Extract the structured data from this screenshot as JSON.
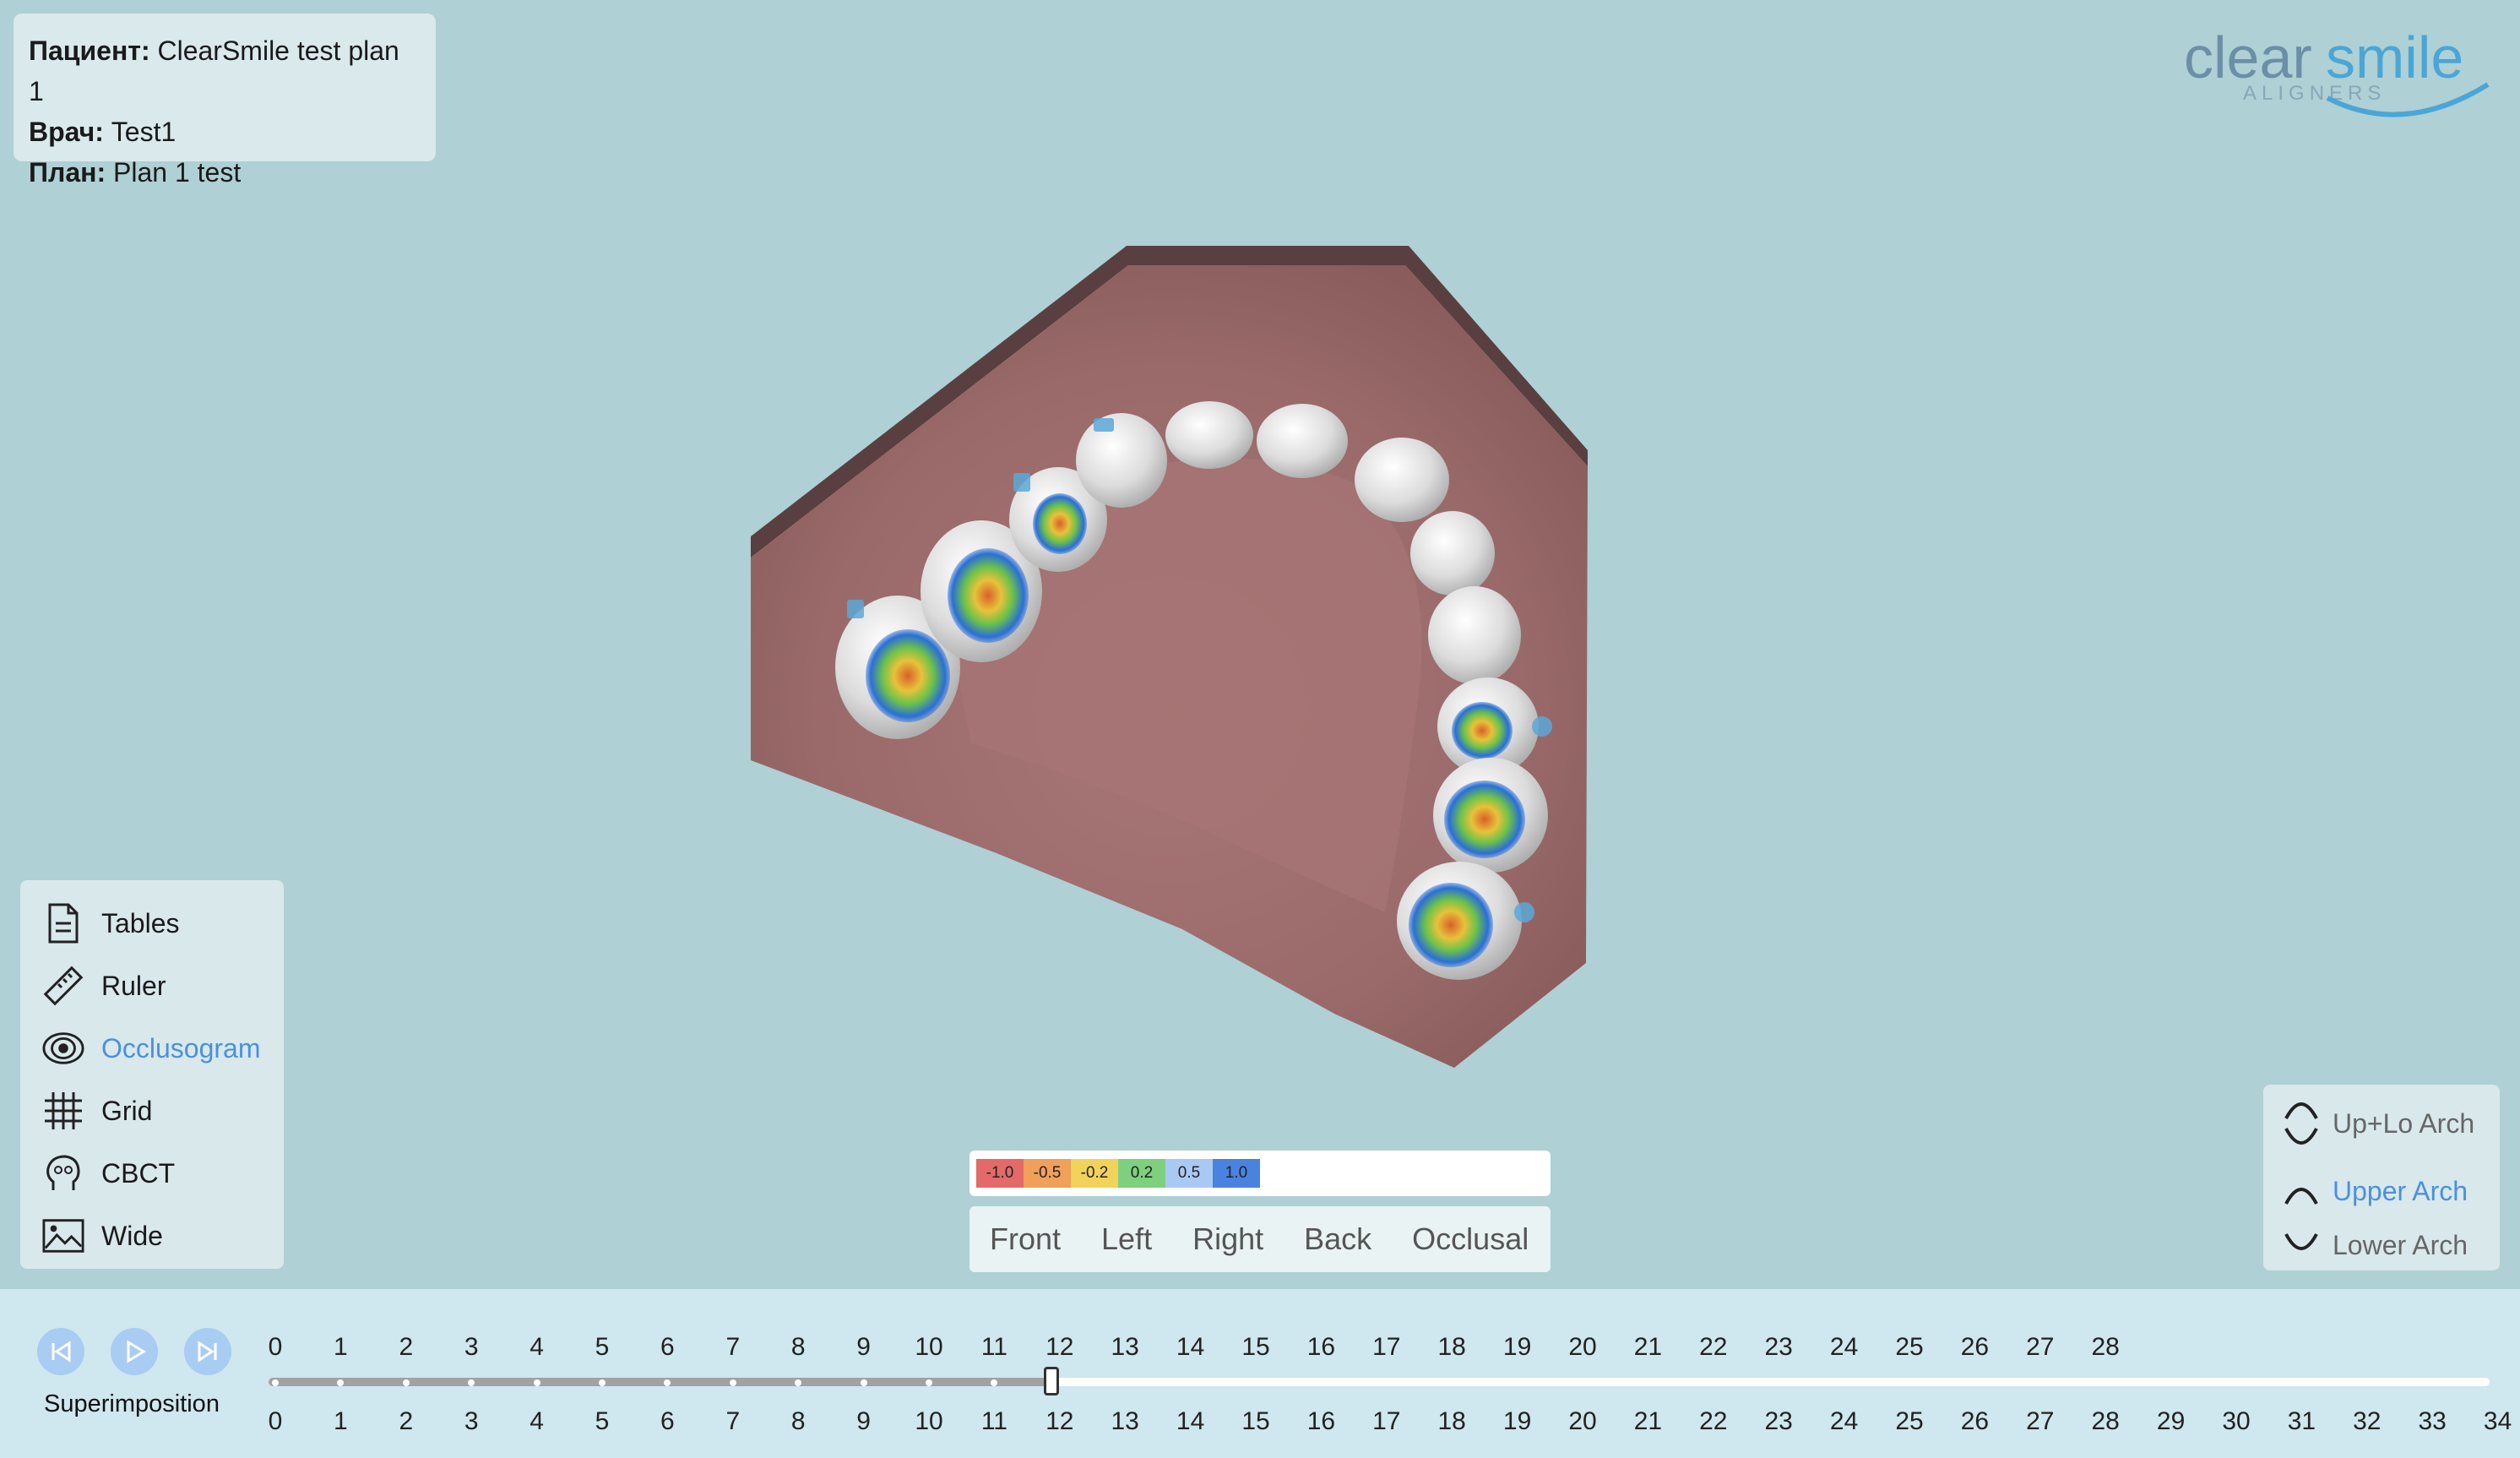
{
  "patient_info": {
    "patient_label": "Пациент:",
    "patient_value": "ClearSmile test plan 1",
    "doctor_label": "Врач:",
    "doctor_value": "Test1",
    "plan_label": "План:",
    "plan_value": "Plan 1 test"
  },
  "logo": {
    "word_clear": "clear",
    "word_smile": "smile",
    "sub": "ALIGNERS"
  },
  "tools": [
    {
      "label": "Tables",
      "icon": "document-icon",
      "active": false
    },
    {
      "label": "Ruler",
      "icon": "ruler-icon",
      "active": false
    },
    {
      "label": "Occlusogram",
      "icon": "occlusogram-icon",
      "active": true
    },
    {
      "label": "Grid",
      "icon": "grid-icon",
      "active": false
    },
    {
      "label": "CBCT",
      "icon": "head-icon",
      "active": false
    },
    {
      "label": "Wide",
      "icon": "image-icon",
      "active": false
    }
  ],
  "legend": [
    {
      "label": "-1.0",
      "color": "#e46a6a"
    },
    {
      "label": "-0.5",
      "color": "#f0a05a"
    },
    {
      "label": "-0.2",
      "color": "#f2d35a"
    },
    {
      "label": "0.2",
      "color": "#7ed07e"
    },
    {
      "label": "0.5",
      "color": "#a9c9f5"
    },
    {
      "label": "1.0",
      "color": "#4a82e0"
    }
  ],
  "views": [
    "Front",
    "Left",
    "Right",
    "Back",
    "Occlusal"
  ],
  "arch": [
    {
      "label": "Up+Lo Arch",
      "icon": "both-arches-icon",
      "active": false
    },
    {
      "label": "Upper Arch",
      "icon": "upper-arch-icon",
      "active": true
    },
    {
      "label": "Lower Arch",
      "icon": "lower-arch-icon",
      "active": false
    }
  ],
  "timeline": {
    "superimposition_label": "Superimposition",
    "upper_steps": [
      "0",
      "1",
      "2",
      "3",
      "4",
      "5",
      "6",
      "7",
      "8",
      "9",
      "10",
      "11",
      "12",
      "13",
      "14",
      "15",
      "16",
      "17",
      "18",
      "19",
      "20",
      "21",
      "22",
      "23",
      "24",
      "25",
      "26",
      "27",
      "28"
    ],
    "lower_steps": [
      "0",
      "1",
      "2",
      "3",
      "4",
      "5",
      "6",
      "7",
      "8",
      "9",
      "10",
      "11",
      "12",
      "13",
      "14",
      "15",
      "16",
      "17",
      "18",
      "19",
      "20",
      "21",
      "22",
      "23",
      "24",
      "25",
      "26",
      "27",
      "28",
      "29",
      "30",
      "31",
      "32",
      "33",
      "34"
    ],
    "current_step": 12
  },
  "colors": {
    "accent": "#4a90e2",
    "background": "#afd0d4",
    "timeline_bg": "#cfe7ef",
    "gum": "#9b6b6b"
  }
}
